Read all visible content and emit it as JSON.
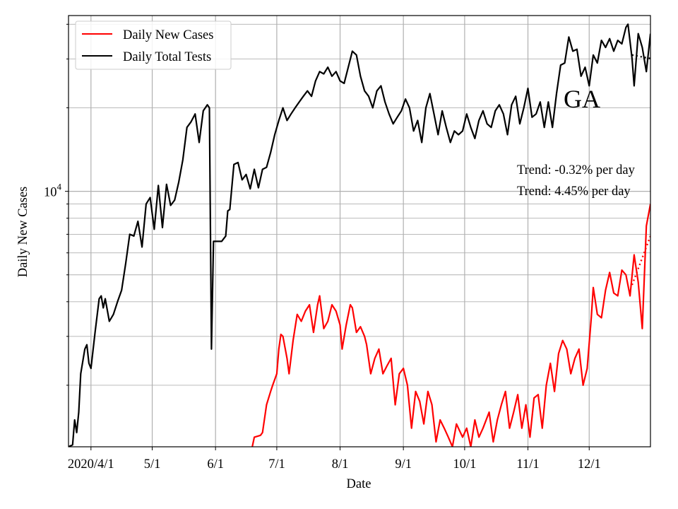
{
  "chart_data": {
    "type": "line",
    "title": "GA",
    "xlabel": "Date",
    "ylabel": "Daily New Cases",
    "yscale": "log",
    "ylim": [
      1200,
      43000
    ],
    "xlim": [
      "2020-03-21",
      "2020-12-31"
    ],
    "grid": true,
    "legend": "top-left",
    "y_tick_label": {
      "base": "10",
      "exponent": "4",
      "value": 10000
    },
    "x_ticks": [
      {
        "date": "2020-04-01",
        "label": "2020/4/1"
      },
      {
        "date": "2020-05-01",
        "label": "5/1"
      },
      {
        "date": "2020-06-01",
        "label": "6/1"
      },
      {
        "date": "2020-07-01",
        "label": "7/1"
      },
      {
        "date": "2020-08-01",
        "label": "8/1"
      },
      {
        "date": "2020-09-01",
        "label": "9/1"
      },
      {
        "date": "2020-10-01",
        "label": "10/1"
      },
      {
        "date": "2020-11-01",
        "label": "11/1"
      },
      {
        "date": "2020-12-01",
        "label": "12/1"
      }
    ],
    "annotations": [
      {
        "text": "Trend: -0.32% per day"
      },
      {
        "text": "Trend: 4.45% per day"
      }
    ],
    "series": [
      {
        "name": "Daily New Cases",
        "color": "#ff0000",
        "points": [
          [
            "2020-06-19",
            1200
          ],
          [
            "2020-06-20",
            1300
          ],
          [
            "2020-06-23",
            1320
          ],
          [
            "2020-06-24",
            1350
          ],
          [
            "2020-06-26",
            1700
          ],
          [
            "2020-06-28",
            1900
          ],
          [
            "2020-06-29",
            2000
          ],
          [
            "2020-07-01",
            2200
          ],
          [
            "2020-07-02",
            2700
          ],
          [
            "2020-07-03",
            3050
          ],
          [
            "2020-07-04",
            3000
          ],
          [
            "2020-07-06",
            2500
          ],
          [
            "2020-07-07",
            2200
          ],
          [
            "2020-07-09",
            2900
          ],
          [
            "2020-07-11",
            3600
          ],
          [
            "2020-07-13",
            3400
          ],
          [
            "2020-07-15",
            3700
          ],
          [
            "2020-07-17",
            3900
          ],
          [
            "2020-07-19",
            3100
          ],
          [
            "2020-07-21",
            3900
          ],
          [
            "2020-07-22",
            4200
          ],
          [
            "2020-07-24",
            3200
          ],
          [
            "2020-07-26",
            3400
          ],
          [
            "2020-07-28",
            3900
          ],
          [
            "2020-07-30",
            3700
          ],
          [
            "2020-08-01",
            3300
          ],
          [
            "2020-08-02",
            2700
          ],
          [
            "2020-08-04",
            3300
          ],
          [
            "2020-08-06",
            3900
          ],
          [
            "2020-08-07",
            3800
          ],
          [
            "2020-08-09",
            3100
          ],
          [
            "2020-08-11",
            3250
          ],
          [
            "2020-08-13",
            3000
          ],
          [
            "2020-08-14",
            2800
          ],
          [
            "2020-08-16",
            2200
          ],
          [
            "2020-08-18",
            2500
          ],
          [
            "2020-08-20",
            2700
          ],
          [
            "2020-08-22",
            2200
          ],
          [
            "2020-08-24",
            2350
          ],
          [
            "2020-08-26",
            2500
          ],
          [
            "2020-08-28",
            1700
          ],
          [
            "2020-08-30",
            2200
          ],
          [
            "2020-09-01",
            2300
          ],
          [
            "2020-09-03",
            2000
          ],
          [
            "2020-09-05",
            1400
          ],
          [
            "2020-09-07",
            1900
          ],
          [
            "2020-09-09",
            1750
          ],
          [
            "2020-09-11",
            1450
          ],
          [
            "2020-09-13",
            1900
          ],
          [
            "2020-09-15",
            1700
          ],
          [
            "2020-09-17",
            1250
          ],
          [
            "2020-09-19",
            1500
          ],
          [
            "2020-09-21",
            1400
          ],
          [
            "2020-09-23",
            1300
          ],
          [
            "2020-09-25",
            1200
          ],
          [
            "2020-09-27",
            1450
          ],
          [
            "2020-09-30",
            1300
          ],
          [
            "2020-10-02",
            1400
          ],
          [
            "2020-10-04",
            1200
          ],
          [
            "2020-10-06",
            1500
          ],
          [
            "2020-10-08",
            1300
          ],
          [
            "2020-10-10",
            1400
          ],
          [
            "2020-10-13",
            1600
          ],
          [
            "2020-10-15",
            1250
          ],
          [
            "2020-10-17",
            1500
          ],
          [
            "2020-10-19",
            1700
          ],
          [
            "2020-10-21",
            1900
          ],
          [
            "2020-10-23",
            1400
          ],
          [
            "2020-10-25",
            1600
          ],
          [
            "2020-10-27",
            1850
          ],
          [
            "2020-10-29",
            1400
          ],
          [
            "2020-10-31",
            1700
          ],
          [
            "2020-11-02",
            1300
          ],
          [
            "2020-11-04",
            1800
          ],
          [
            "2020-11-06",
            1850
          ],
          [
            "2020-11-08",
            1400
          ],
          [
            "2020-11-10",
            2000
          ],
          [
            "2020-11-12",
            2400
          ],
          [
            "2020-11-14",
            1900
          ],
          [
            "2020-11-16",
            2600
          ],
          [
            "2020-11-18",
            2900
          ],
          [
            "2020-11-20",
            2700
          ],
          [
            "2020-11-22",
            2200
          ],
          [
            "2020-11-24",
            2500
          ],
          [
            "2020-11-26",
            2700
          ],
          [
            "2020-11-28",
            2000
          ],
          [
            "2020-11-30",
            2300
          ],
          [
            "2020-12-02",
            3500
          ],
          [
            "2020-12-03",
            4500
          ],
          [
            "2020-12-05",
            3600
          ],
          [
            "2020-12-07",
            3500
          ],
          [
            "2020-12-09",
            4400
          ],
          [
            "2020-12-11",
            5100
          ],
          [
            "2020-12-13",
            4300
          ],
          [
            "2020-12-15",
            4200
          ],
          [
            "2020-12-17",
            5200
          ],
          [
            "2020-12-19",
            5000
          ],
          [
            "2020-12-21",
            4200
          ],
          [
            "2020-12-23",
            5900
          ],
          [
            "2020-12-25",
            4700
          ],
          [
            "2020-12-27",
            3200
          ],
          [
            "2020-12-29",
            7500
          ],
          [
            "2020-12-31",
            9000
          ]
        ]
      },
      {
        "name": "Daily Total Tests",
        "color": "#000000",
        "points": [
          [
            "2020-03-21",
            1200
          ],
          [
            "2020-03-23",
            1220
          ],
          [
            "2020-03-24",
            1500
          ],
          [
            "2020-03-25",
            1350
          ],
          [
            "2020-03-26",
            1600
          ],
          [
            "2020-03-27",
            2200
          ],
          [
            "2020-03-29",
            2700
          ],
          [
            "2020-03-30",
            2800
          ],
          [
            "2020-03-31",
            2400
          ],
          [
            "2020-04-01",
            2300
          ],
          [
            "2020-04-03",
            3100
          ],
          [
            "2020-04-05",
            4100
          ],
          [
            "2020-04-06",
            4200
          ],
          [
            "2020-04-07",
            3800
          ],
          [
            "2020-04-08",
            4100
          ],
          [
            "2020-04-10",
            3400
          ],
          [
            "2020-04-12",
            3600
          ],
          [
            "2020-04-14",
            4000
          ],
          [
            "2020-04-16",
            4400
          ],
          [
            "2020-04-18",
            5500
          ],
          [
            "2020-04-20",
            7000
          ],
          [
            "2020-04-22",
            6900
          ],
          [
            "2020-04-24",
            7800
          ],
          [
            "2020-04-26",
            6300
          ],
          [
            "2020-04-28",
            9000
          ],
          [
            "2020-04-30",
            9500
          ],
          [
            "2020-05-02",
            7300
          ],
          [
            "2020-05-04",
            10500
          ],
          [
            "2020-05-06",
            7400
          ],
          [
            "2020-05-08",
            10600
          ],
          [
            "2020-05-10",
            8900
          ],
          [
            "2020-05-12",
            9300
          ],
          [
            "2020-05-14",
            10800
          ],
          [
            "2020-05-16",
            13000
          ],
          [
            "2020-05-18",
            17000
          ],
          [
            "2020-05-20",
            17800
          ],
          [
            "2020-05-22",
            19000
          ],
          [
            "2020-05-24",
            15000
          ],
          [
            "2020-05-26",
            19500
          ],
          [
            "2020-05-28",
            20500
          ],
          [
            "2020-05-29",
            20000
          ],
          [
            "2020-05-30",
            2700
          ],
          [
            "2020-05-31",
            6600
          ],
          [
            "2020-06-04",
            6600
          ],
          [
            "2020-06-06",
            6900
          ],
          [
            "2020-06-07",
            8500
          ],
          [
            "2020-06-08",
            8600
          ],
          [
            "2020-06-10",
            12500
          ],
          [
            "2020-06-12",
            12700
          ],
          [
            "2020-06-14",
            11000
          ],
          [
            "2020-06-16",
            11500
          ],
          [
            "2020-06-18",
            10200
          ],
          [
            "2020-06-20",
            12000
          ],
          [
            "2020-06-22",
            10300
          ],
          [
            "2020-06-24",
            12000
          ],
          [
            "2020-06-26",
            12200
          ],
          [
            "2020-06-28",
            13800
          ],
          [
            "2020-06-30",
            16000
          ],
          [
            "2020-07-02",
            18000
          ],
          [
            "2020-07-04",
            20000
          ],
          [
            "2020-07-06",
            18000
          ],
          [
            "2020-07-08",
            19000
          ],
          [
            "2020-07-10",
            20000
          ],
          [
            "2020-07-12",
            21000
          ],
          [
            "2020-07-14",
            22000
          ],
          [
            "2020-07-16",
            23000
          ],
          [
            "2020-07-18",
            22000
          ],
          [
            "2020-07-20",
            25000
          ],
          [
            "2020-07-22",
            27000
          ],
          [
            "2020-07-24",
            26500
          ],
          [
            "2020-07-26",
            28000
          ],
          [
            "2020-07-28",
            26000
          ],
          [
            "2020-07-30",
            27000
          ],
          [
            "2020-08-01",
            25000
          ],
          [
            "2020-08-03",
            24500
          ],
          [
            "2020-08-05",
            28000
          ],
          [
            "2020-08-07",
            32000
          ],
          [
            "2020-08-09",
            31000
          ],
          [
            "2020-08-11",
            26000
          ],
          [
            "2020-08-13",
            23000
          ],
          [
            "2020-08-15",
            22000
          ],
          [
            "2020-08-17",
            20000
          ],
          [
            "2020-08-19",
            23000
          ],
          [
            "2020-08-21",
            24000
          ],
          [
            "2020-08-23",
            21000
          ],
          [
            "2020-08-25",
            19000
          ],
          [
            "2020-08-27",
            17500
          ],
          [
            "2020-08-29",
            18500
          ],
          [
            "2020-08-31",
            19500
          ],
          [
            "2020-09-02",
            21500
          ],
          [
            "2020-09-04",
            20000
          ],
          [
            "2020-09-06",
            16500
          ],
          [
            "2020-09-08",
            18000
          ],
          [
            "2020-09-10",
            15000
          ],
          [
            "2020-09-12",
            20000
          ],
          [
            "2020-09-14",
            22500
          ],
          [
            "2020-09-16",
            19000
          ],
          [
            "2020-09-18",
            16000
          ],
          [
            "2020-09-20",
            19500
          ],
          [
            "2020-09-22",
            17000
          ],
          [
            "2020-09-24",
            15000
          ],
          [
            "2020-09-26",
            16500
          ],
          [
            "2020-09-28",
            16000
          ],
          [
            "2020-09-30",
            16500
          ],
          [
            "2020-10-02",
            19000
          ],
          [
            "2020-10-04",
            17000
          ],
          [
            "2020-10-06",
            15500
          ],
          [
            "2020-10-08",
            18000
          ],
          [
            "2020-10-10",
            19500
          ],
          [
            "2020-10-12",
            17500
          ],
          [
            "2020-10-14",
            17000
          ],
          [
            "2020-10-16",
            19500
          ],
          [
            "2020-10-18",
            20500
          ],
          [
            "2020-10-20",
            19000
          ],
          [
            "2020-10-22",
            16000
          ],
          [
            "2020-10-24",
            20500
          ],
          [
            "2020-10-26",
            22000
          ],
          [
            "2020-10-28",
            17500
          ],
          [
            "2020-10-30",
            20000
          ],
          [
            "2020-11-01",
            23500
          ],
          [
            "2020-11-03",
            18500
          ],
          [
            "2020-11-05",
            19000
          ],
          [
            "2020-11-07",
            21000
          ],
          [
            "2020-11-09",
            17000
          ],
          [
            "2020-11-11",
            21000
          ],
          [
            "2020-11-13",
            17000
          ],
          [
            "2020-11-15",
            22500
          ],
          [
            "2020-11-17",
            28500
          ],
          [
            "2020-11-19",
            29000
          ],
          [
            "2020-11-21",
            36000
          ],
          [
            "2020-11-23",
            32000
          ],
          [
            "2020-11-25",
            32500
          ],
          [
            "2020-11-27",
            26000
          ],
          [
            "2020-11-29",
            28000
          ],
          [
            "2020-12-01",
            24000
          ],
          [
            "2020-12-03",
            31000
          ],
          [
            "2020-12-05",
            29000
          ],
          [
            "2020-12-07",
            35000
          ],
          [
            "2020-12-09",
            33000
          ],
          [
            "2020-12-11",
            35500
          ],
          [
            "2020-12-13",
            32000
          ],
          [
            "2020-12-15",
            35000
          ],
          [
            "2020-12-17",
            34000
          ],
          [
            "2020-12-19",
            39000
          ],
          [
            "2020-12-20",
            40000
          ],
          [
            "2020-12-22",
            30000
          ],
          [
            "2020-12-23",
            24000
          ],
          [
            "2020-12-25",
            37000
          ],
          [
            "2020-12-27",
            33000
          ],
          [
            "2020-12-29",
            27000
          ],
          [
            "2020-12-31",
            37000
          ]
        ]
      }
    ],
    "trend_lines": [
      {
        "series": "Daily Total Tests",
        "color": "#000000",
        "points": [
          [
            "2020-12-22",
            31000
          ],
          [
            "2020-12-31",
            30100
          ]
        ]
      },
      {
        "series": "Daily New Cases",
        "color": "#ff0000",
        "points": [
          [
            "2020-12-22",
            4600
          ],
          [
            "2020-12-31",
            6900
          ]
        ]
      }
    ]
  }
}
